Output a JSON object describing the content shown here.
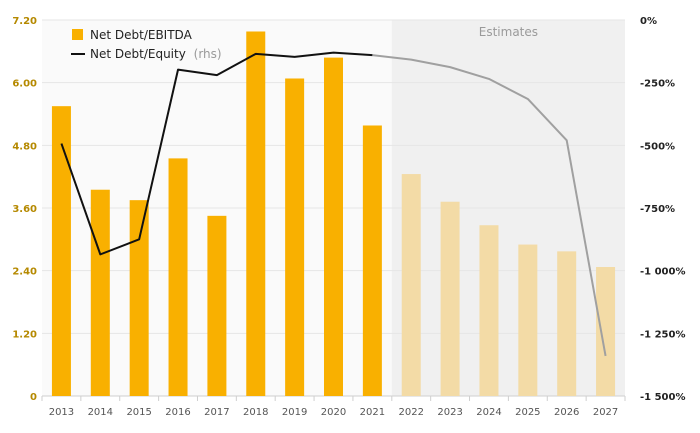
{
  "chart_data": {
    "type": "bar+line",
    "categories": [
      "2013",
      "2014",
      "2015",
      "2016",
      "2017",
      "2018",
      "2019",
      "2020",
      "2021",
      "2022",
      "2023",
      "2024",
      "2025",
      "2026",
      "2027"
    ],
    "estimates_label": "Estimates",
    "estimates_start": "2022",
    "series": [
      {
        "name": "Net Debt/EBITDA",
        "type": "bar",
        "axis": "left",
        "color": "#f9b000",
        "estimate_color": "#f3dba6",
        "values": [
          5.55,
          3.95,
          3.75,
          4.55,
          3.45,
          6.98,
          6.08,
          6.48,
          5.18,
          4.25,
          3.72,
          3.27,
          2.9,
          2.77,
          2.47
        ]
      },
      {
        "name": "Net Debt/Equity",
        "legend_suffix": "(rhs)",
        "type": "line",
        "axis": "right",
        "color": "#111111",
        "estimate_color": "#a0a0a0",
        "values": [
          -493,
          -935,
          -875,
          -198,
          -220,
          -135,
          -147,
          -130,
          -140,
          -158,
          -188,
          -235,
          -315,
          -480,
          -1340
        ]
      }
    ],
    "y_left": {
      "ylim": [
        0,
        7.2
      ],
      "ticks": [
        "0",
        "1.20",
        "2.40",
        "3.60",
        "4.80",
        "6.00",
        "7.20"
      ]
    },
    "y_right": {
      "ylim": [
        -1500,
        0
      ],
      "ticks": [
        "0%",
        "-250%",
        "-500%",
        "-750%",
        "-1 000%",
        "-1 250%",
        "-1 500%"
      ]
    },
    "grid": true,
    "legend_position": "top-left"
  }
}
